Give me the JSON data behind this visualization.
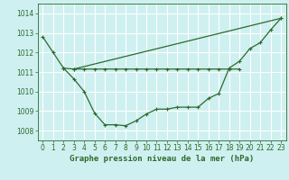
{
  "title": "Graphe pression niveau de la mer (hPa)",
  "bg_color": "#cff0f0",
  "line_color": "#2d6a2d",
  "grid_color": "#ffffff",
  "x_ticks": [
    0,
    1,
    2,
    3,
    4,
    5,
    6,
    7,
    8,
    9,
    10,
    11,
    12,
    13,
    14,
    15,
    16,
    17,
    18,
    19,
    20,
    21,
    22,
    23
  ],
  "y_ticks": [
    1008,
    1009,
    1010,
    1011,
    1012,
    1013,
    1014
  ],
  "ylim": [
    1007.5,
    1014.5
  ],
  "xlim": [
    -0.5,
    23.5
  ],
  "curve1_x": [
    0,
    1,
    2,
    3,
    4,
    5,
    6,
    7,
    8,
    9,
    10,
    11,
    12,
    13,
    14,
    15,
    16,
    17,
    18,
    19,
    20,
    21,
    22,
    23
  ],
  "curve1_y": [
    1012.8,
    1012.0,
    1011.2,
    1010.65,
    1010.0,
    1008.9,
    1008.3,
    1008.3,
    1008.25,
    1008.5,
    1008.85,
    1009.1,
    1009.1,
    1009.2,
    1009.2,
    1009.2,
    1009.65,
    1009.9,
    1011.2,
    1011.55,
    1012.2,
    1012.5,
    1013.15,
    1013.75
  ],
  "curve2_x": [
    2,
    3,
    4,
    5,
    6,
    7,
    8,
    9,
    10,
    11,
    12,
    13,
    14,
    15,
    16,
    17,
    18,
    19
  ],
  "curve2_y": [
    1011.2,
    1011.15,
    1011.15,
    1011.15,
    1011.15,
    1011.15,
    1011.15,
    1011.15,
    1011.15,
    1011.15,
    1011.15,
    1011.15,
    1011.15,
    1011.15,
    1011.15,
    1011.15,
    1011.15,
    1011.15
  ],
  "curve3_x": [
    3,
    23
  ],
  "curve3_y": [
    1011.15,
    1013.75
  ],
  "xlabel_fontsize": 6.5,
  "tick_fontsize": 5.5
}
